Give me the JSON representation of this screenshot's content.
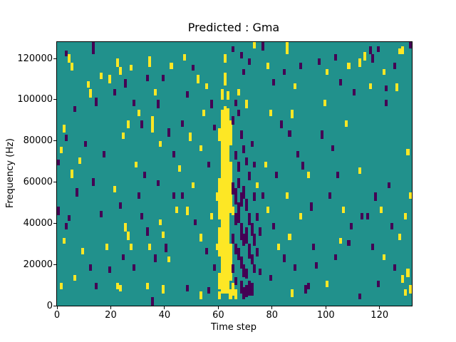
{
  "title": "Predicted : Gma",
  "xlabel": "Time step",
  "ylabel": "Frequency (Hz)",
  "chart_data": {
    "type": "heatmap",
    "title": "Predicted : Gma",
    "xlabel": "Time step",
    "ylabel": "Frequency (Hz)",
    "legend": "none",
    "grid_lines": "off",
    "x_range": [
      0,
      132
    ],
    "y_range_hz": [
      0,
      128000
    ],
    "grid": {
      "cols": 132,
      "rows": 128,
      "hz_per_row": 1000
    },
    "colors": {
      "background": "#21918c",
      "yellow": "#fde725",
      "purple": "#440154"
    },
    "xticks": {
      "values": [
        0,
        20,
        40,
        60,
        80,
        100,
        120
      ],
      "labels": [
        "0",
        "20",
        "40",
        "60",
        "80",
        "100",
        "120"
      ]
    },
    "yticks": {
      "values": [
        0,
        20000,
        40000,
        60000,
        80000,
        100000,
        120000
      ],
      "labels": [
        "0",
        "20000",
        "40000",
        "60000",
        "80000",
        "100000",
        "120000"
      ]
    },
    "marks_format": "[time_step, top_freq_bin_kHz, height_bins, color_index]; color 0=yellow, 1=purple; background is teal",
    "marks": [
      [
        3,
        124,
        3,
        1
      ],
      [
        4,
        122,
        4,
        0
      ],
      [
        5,
        118,
        4,
        0
      ],
      [
        13,
        128,
        6,
        1
      ],
      [
        11,
        109,
        3,
        0
      ],
      [
        12,
        105,
        4,
        0
      ],
      [
        14,
        101,
        4,
        1
      ],
      [
        16,
        113,
        3,
        0
      ],
      [
        19,
        112,
        4,
        0
      ],
      [
        6,
        97,
        3,
        1
      ],
      [
        2,
        88,
        4,
        0
      ],
      [
        3,
        83,
        3,
        1
      ],
      [
        1,
        77,
        3,
        0
      ],
      [
        8,
        72,
        3,
        0
      ],
      [
        5,
        66,
        4,
        0
      ],
      [
        17,
        75,
        3,
        1
      ],
      [
        10,
        80,
        3,
        1
      ],
      [
        0,
        71,
        3,
        1
      ],
      [
        0,
        48,
        4,
        1
      ],
      [
        2,
        33,
        3,
        0
      ],
      [
        4,
        44,
        3,
        1
      ],
      [
        3,
        40,
        3,
        1
      ],
      [
        7,
        57,
        4,
        1
      ],
      [
        13,
        62,
        4,
        1
      ],
      [
        9,
        28,
        3,
        0
      ],
      [
        12,
        20,
        3,
        1
      ],
      [
        1,
        11,
        3,
        0
      ],
      [
        14,
        11,
        3,
        1
      ],
      [
        18,
        30,
        3,
        0
      ],
      [
        16,
        46,
        3,
        1
      ],
      [
        19,
        19,
        3,
        1
      ],
      [
        6,
        15,
        3,
        0
      ],
      [
        22,
        120,
        4,
        0
      ],
      [
        23,
        116,
        4,
        0
      ],
      [
        21,
        105,
        3,
        1
      ],
      [
        25,
        110,
        4,
        1
      ],
      [
        27,
        117,
        3,
        0
      ],
      [
        28,
        100,
        3,
        1
      ],
      [
        26,
        90,
        4,
        0
      ],
      [
        24,
        84,
        3,
        0
      ],
      [
        30,
        95,
        3,
        0
      ],
      [
        31,
        90,
        4,
        1
      ],
      [
        34,
        121,
        5,
        0
      ],
      [
        33,
        112,
        3,
        1
      ],
      [
        36,
        105,
        3,
        0
      ],
      [
        37,
        100,
        4,
        1
      ],
      [
        35,
        92,
        8,
        0
      ],
      [
        39,
        112,
        3,
        1
      ],
      [
        41,
        86,
        4,
        1
      ],
      [
        38,
        80,
        3,
        0
      ],
      [
        42,
        118,
        3,
        0
      ],
      [
        43,
        75,
        3,
        1
      ],
      [
        29,
        70,
        3,
        0
      ],
      [
        32,
        65,
        3,
        1
      ],
      [
        21,
        58,
        3,
        0
      ],
      [
        23,
        50,
        3,
        1
      ],
      [
        25,
        40,
        4,
        0
      ],
      [
        26,
        36,
        4,
        0
      ],
      [
        27,
        30,
        3,
        0
      ],
      [
        24,
        25,
        3,
        1
      ],
      [
        28,
        20,
        3,
        1
      ],
      [
        22,
        11,
        3,
        0
      ],
      [
        23,
        10,
        3,
        0
      ],
      [
        31,
        45,
        3,
        1
      ],
      [
        33,
        38,
        4,
        1
      ],
      [
        34,
        30,
        3,
        0
      ],
      [
        36,
        25,
        4,
        1
      ],
      [
        38,
        42,
        3,
        0
      ],
      [
        39,
        36,
        3,
        0
      ],
      [
        40,
        30,
        4,
        1
      ],
      [
        41,
        24,
        3,
        0
      ],
      [
        33,
        11,
        3,
        0
      ],
      [
        39,
        10,
        4,
        0
      ],
      [
        35,
        4,
        4,
        1
      ],
      [
        43,
        55,
        3,
        1
      ],
      [
        44,
        48,
        3,
        0
      ],
      [
        37,
        61,
        3,
        1
      ],
      [
        30,
        55,
        3,
        1
      ],
      [
        47,
        122,
        3,
        0
      ],
      [
        50,
        117,
        3,
        1
      ],
      [
        52,
        112,
        4,
        0
      ],
      [
        48,
        104,
        3,
        1
      ],
      [
        55,
        108,
        3,
        0
      ],
      [
        57,
        100,
        4,
        1
      ],
      [
        54,
        95,
        3,
        0
      ],
      [
        46,
        90,
        3,
        1
      ],
      [
        49,
        84,
        4,
        0
      ],
      [
        58,
        88,
        3,
        1
      ],
      [
        53,
        78,
        3,
        0
      ],
      [
        56,
        70,
        3,
        1
      ],
      [
        45,
        68,
        3,
        0
      ],
      [
        46,
        55,
        3,
        1
      ],
      [
        48,
        48,
        4,
        0
      ],
      [
        51,
        42,
        3,
        1
      ],
      [
        53,
        35,
        4,
        0
      ],
      [
        55,
        28,
        3,
        1
      ],
      [
        57,
        45,
        3,
        0
      ],
      [
        58,
        20,
        3,
        1
      ],
      [
        48,
        10,
        3,
        1
      ],
      [
        53,
        7,
        4,
        0
      ],
      [
        56,
        9,
        3,
        1
      ],
      [
        50,
        60,
        3,
        0
      ],
      [
        59,
        55,
        4,
        0
      ],
      [
        59,
        30,
        3,
        0
      ],
      [
        61,
        95,
        89,
        0
      ],
      [
        62,
        97,
        91,
        0
      ],
      [
        63,
        96,
        90,
        0
      ],
      [
        60,
        62,
        20,
        0
      ],
      [
        60,
        38,
        14,
        0
      ],
      [
        60,
        16,
        8,
        0
      ],
      [
        64,
        90,
        12,
        0
      ],
      [
        64,
        70,
        25,
        0
      ],
      [
        64,
        30,
        18,
        0
      ],
      [
        62,
        113,
        6,
        0
      ],
      [
        61,
        105,
        5,
        0
      ],
      [
        63,
        104,
        4,
        0
      ],
      [
        60,
        86,
        6,
        0
      ],
      [
        64,
        8,
        5,
        0
      ],
      [
        60,
        7,
        4,
        0
      ],
      [
        62,
        122,
        4,
        0
      ],
      [
        65,
        60,
        6,
        1
      ],
      [
        66,
        57,
        8,
        1
      ],
      [
        66,
        45,
        6,
        1
      ],
      [
        67,
        62,
        5,
        1
      ],
      [
        67,
        50,
        10,
        1
      ],
      [
        68,
        55,
        7,
        1
      ],
      [
        68,
        40,
        8,
        1
      ],
      [
        69,
        58,
        6,
        1
      ],
      [
        69,
        35,
        6,
        1
      ],
      [
        66,
        30,
        5,
        1
      ],
      [
        67,
        28,
        6,
        1
      ],
      [
        68,
        24,
        6,
        1
      ],
      [
        69,
        20,
        6,
        1
      ],
      [
        70,
        52,
        6,
        1
      ],
      [
        70,
        38,
        8,
        1
      ],
      [
        71,
        45,
        6,
        1
      ],
      [
        71,
        30,
        7,
        1
      ],
      [
        72,
        40,
        6,
        1
      ],
      [
        72,
        25,
        5,
        1
      ],
      [
        73,
        35,
        6,
        1
      ],
      [
        70,
        18,
        5,
        1
      ],
      [
        71,
        12,
        4,
        1
      ],
      [
        68,
        12,
        6,
        1
      ],
      [
        69,
        9,
        6,
        1
      ],
      [
        70,
        10,
        6,
        1
      ],
      [
        71,
        10,
        5,
        1
      ],
      [
        72,
        11,
        6,
        1
      ],
      [
        66,
        14,
        4,
        1
      ],
      [
        73,
        20,
        4,
        1
      ],
      [
        74,
        28,
        4,
        1
      ],
      [
        74,
        45,
        4,
        1
      ],
      [
        75,
        38,
        4,
        1
      ],
      [
        65,
        20,
        4,
        1
      ],
      [
        65,
        35,
        5,
        1
      ],
      [
        73,
        55,
        4,
        1
      ],
      [
        75,
        18,
        3,
        1
      ],
      [
        65,
        11,
        6,
        0
      ],
      [
        66,
        8,
        5,
        0
      ],
      [
        65,
        48,
        4,
        0
      ],
      [
        74,
        60,
        3,
        0
      ],
      [
        66,
        75,
        4,
        1
      ],
      [
        67,
        70,
        5,
        1
      ],
      [
        68,
        85,
        4,
        1
      ],
      [
        69,
        78,
        4,
        1
      ],
      [
        65,
        92,
        4,
        1
      ],
      [
        70,
        72,
        4,
        1
      ],
      [
        71,
        65,
        4,
        1
      ],
      [
        67,
        95,
        3,
        1
      ],
      [
        72,
        80,
        3,
        1
      ],
      [
        66,
        100,
        3,
        1
      ],
      [
        70,
        100,
        4,
        0
      ],
      [
        67,
        105,
        3,
        0
      ],
      [
        73,
        70,
        3,
        1
      ],
      [
        68,
        123,
        3,
        1
      ],
      [
        71,
        120,
        3,
        1
      ],
      [
        65,
        126,
        3,
        1
      ],
      [
        73,
        128,
        3,
        0
      ],
      [
        76,
        128,
        4,
        1
      ],
      [
        69,
        115,
        3,
        1
      ],
      [
        78,
        118,
        3,
        0
      ],
      [
        80,
        110,
        3,
        1
      ],
      [
        85,
        128,
        6,
        0
      ],
      [
        84,
        115,
        3,
        1
      ],
      [
        88,
        108,
        3,
        0
      ],
      [
        79,
        95,
        3,
        0
      ],
      [
        83,
        90,
        4,
        1
      ],
      [
        86,
        85,
        3,
        1
      ],
      [
        90,
        118,
        3,
        1
      ],
      [
        87,
        95,
        4,
        0
      ],
      [
        89,
        75,
        3,
        1
      ],
      [
        77,
        70,
        3,
        0
      ],
      [
        81,
        65,
        3,
        1
      ],
      [
        91,
        70,
        4,
        1
      ],
      [
        93,
        65,
        3,
        0
      ],
      [
        76,
        55,
        3,
        1
      ],
      [
        78,
        48,
        3,
        0
      ],
      [
        80,
        40,
        3,
        1
      ],
      [
        82,
        30,
        3,
        0
      ],
      [
        84,
        25,
        4,
        1
      ],
      [
        86,
        35,
        3,
        0
      ],
      [
        88,
        20,
        3,
        1
      ],
      [
        87,
        8,
        4,
        0
      ],
      [
        92,
        10,
        4,
        1
      ],
      [
        93,
        11,
        3,
        1
      ],
      [
        90,
        45,
        3,
        0
      ],
      [
        95,
        30,
        3,
        1
      ],
      [
        94,
        50,
        4,
        1
      ],
      [
        79,
        15,
        3,
        1
      ],
      [
        85,
        55,
        3,
        0
      ],
      [
        97,
        120,
        3,
        1
      ],
      [
        100,
        115,
        3,
        0
      ],
      [
        103,
        122,
        3,
        1
      ],
      [
        99,
        100,
        3,
        0
      ],
      [
        105,
        110,
        3,
        1
      ],
      [
        108,
        118,
        3,
        0
      ],
      [
        110,
        105,
        3,
        1
      ],
      [
        98,
        85,
        4,
        1
      ],
      [
        102,
        78,
        3,
        1
      ],
      [
        107,
        90,
        3,
        0
      ],
      [
        104,
        65,
        3,
        1
      ],
      [
        101,
        55,
        3,
        1
      ],
      [
        106,
        48,
        3,
        0
      ],
      [
        109,
        40,
        3,
        1
      ],
      [
        103,
        25,
        3,
        1
      ],
      [
        105,
        33,
        3,
        0
      ],
      [
        108,
        32,
        3,
        1
      ],
      [
        96,
        21,
        3,
        1
      ],
      [
        100,
        12,
        3,
        0
      ],
      [
        113,
        45,
        3,
        1
      ],
      [
        114,
        123,
        4,
        0
      ],
      [
        116,
        126,
        4,
        1
      ],
      [
        112,
        120,
        4,
        0
      ],
      [
        128,
        126,
        4,
        0
      ],
      [
        131,
        128,
        3,
        1
      ],
      [
        122,
        107,
        3,
        1
      ],
      [
        126,
        108,
        4,
        0
      ],
      [
        130,
        76,
        3,
        0
      ],
      [
        112,
        67,
        3,
        0
      ],
      [
        118,
        55,
        4,
        1
      ],
      [
        120,
        48,
        3,
        0
      ],
      [
        124,
        40,
        3,
        1
      ],
      [
        127,
        35,
        3,
        0
      ],
      [
        129,
        45,
        3,
        0
      ],
      [
        131,
        55,
        3,
        0
      ],
      [
        117,
        30,
        3,
        1
      ],
      [
        121,
        25,
        3,
        0
      ],
      [
        125,
        20,
        3,
        1
      ],
      [
        128,
        15,
        4,
        0
      ],
      [
        130,
        18,
        4,
        0
      ],
      [
        131,
        10,
        4,
        0
      ],
      [
        129,
        8,
        3,
        0
      ],
      [
        112,
        6,
        3,
        1
      ],
      [
        119,
        12,
        3,
        1
      ],
      [
        123,
        60,
        3,
        1
      ],
      [
        115,
        45,
        3,
        1
      ],
      [
        117,
        122,
        4,
        1
      ],
      [
        119,
        126,
        3,
        1
      ],
      [
        121,
        115,
        3,
        0
      ],
      [
        127,
        125,
        3,
        0
      ],
      [
        125,
        118,
        3,
        1
      ],
      [
        116,
        108,
        3,
        0
      ],
      [
        122,
        100,
        3,
        1
      ]
    ]
  }
}
